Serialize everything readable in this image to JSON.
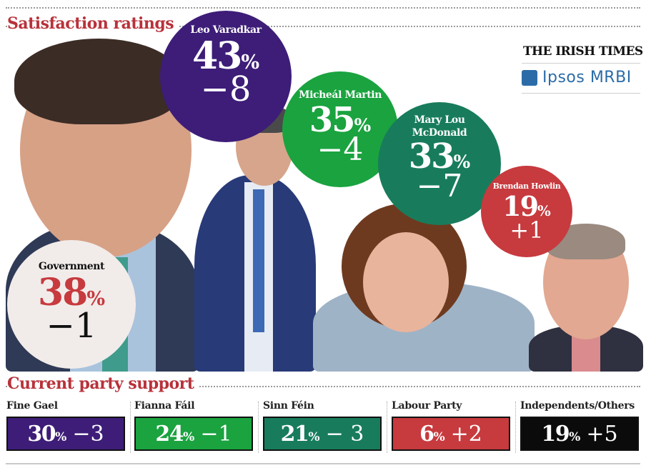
{
  "header": {
    "title": "Satisfaction ratings",
    "brand": "THE IRISH TIMES",
    "pollster": "Ipsos MRBI"
  },
  "bubbles": [
    {
      "name": "Leo Varadkar",
      "pct": "43",
      "change": "−8",
      "color": "#3d1d78"
    },
    {
      "name": "Micheál Martin",
      "pct": "35",
      "change": "−4",
      "color": "#1aa33f"
    },
    {
      "name": "Mary Lou",
      "name2": "McDonald",
      "pct": "33",
      "change": "−7",
      "color": "#187c5c"
    },
    {
      "name": "Brendan Howlin",
      "pct": "19",
      "change": "+1",
      "color": "#c73a3e"
    },
    {
      "name": "Government",
      "pct": "38",
      "change": "−1",
      "color": "#f1ecea"
    }
  ],
  "section2": {
    "title": "Current party support"
  },
  "percent_sign": "%",
  "parties": [
    {
      "name": "Fine Gael",
      "value": "30",
      "change": "−3",
      "color": "#3d1d78"
    },
    {
      "name": "Fianna Fáil",
      "value": "24",
      "change": "−1",
      "color": "#1aa33f"
    },
    {
      "name": "Sinn Féin",
      "value": "21",
      "change": "− 3",
      "color": "#187c5c"
    },
    {
      "name": "Labour Party",
      "value": "6",
      "change": "+2",
      "color": "#c73a3e"
    },
    {
      "name": "Independents/Others",
      "value": "19",
      "change": "+5",
      "color": "#0b0b0b"
    }
  ],
  "chart_data": {
    "type": "table",
    "title": "Satisfaction ratings",
    "satisfaction": [
      {
        "label": "Leo Varadkar",
        "value": 43,
        "change": -8
      },
      {
        "label": "Micheál Martin",
        "value": 35,
        "change": -4
      },
      {
        "label": "Mary Lou McDonald",
        "value": 33,
        "change": -7
      },
      {
        "label": "Brendan Howlin",
        "value": 19,
        "change": 1
      },
      {
        "label": "Government",
        "value": 38,
        "change": -1
      }
    ],
    "party_support_title": "Current party support",
    "party_support": [
      {
        "label": "Fine Gael",
        "value": 30,
        "change": -3
      },
      {
        "label": "Fianna Fáil",
        "value": 24,
        "change": -1
      },
      {
        "label": "Sinn Féin",
        "value": 21,
        "change": -3
      },
      {
        "label": "Labour Party",
        "value": 6,
        "change": 2
      },
      {
        "label": "Independents/Others",
        "value": 19,
        "change": 5
      }
    ]
  }
}
